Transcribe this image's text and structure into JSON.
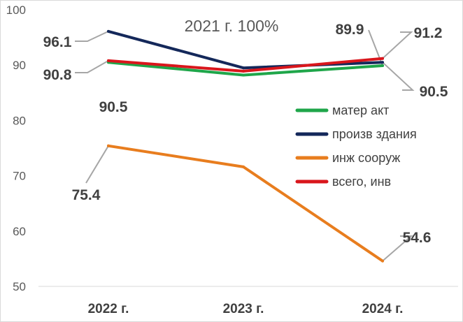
{
  "chart_data": {
    "type": "line",
    "title": "2021 г. 100%",
    "categories": [
      "2022 г.",
      "2023 г.",
      "2024 г."
    ],
    "ylim": [
      50,
      100
    ],
    "yticks": [
      50,
      60,
      70,
      80,
      90,
      100
    ],
    "grid": false,
    "legend_position": "right",
    "series": [
      {
        "name": "матер акт",
        "color": "#1fa64a",
        "values": [
          90.5,
          88.2,
          89.9
        ]
      },
      {
        "name": "произв здания",
        "color": "#14285a",
        "values": [
          96.1,
          89.5,
          90.5
        ]
      },
      {
        "name": "инж сооруж",
        "color": "#e87d1e",
        "values": [
          75.4,
          71.6,
          54.6
        ]
      },
      {
        "name": "всего, инв",
        "color": "#d9161c",
        "values": [
          90.8,
          88.9,
          91.2
        ]
      }
    ],
    "data_labels": [
      {
        "text": "96.1",
        "series": 1,
        "point": 0
      },
      {
        "text": "90.8",
        "series": 3,
        "point": 0
      },
      {
        "text": "90.5",
        "series": 0,
        "point": 0
      },
      {
        "text": "75.4",
        "series": 2,
        "point": 0
      },
      {
        "text": "89.9",
        "series": 0,
        "point": 2
      },
      {
        "text": "91.2",
        "series": 3,
        "point": 2
      },
      {
        "text": "90.5",
        "series": 1,
        "point": 2
      },
      {
        "text": "54.6",
        "series": 2,
        "point": 2
      }
    ]
  }
}
